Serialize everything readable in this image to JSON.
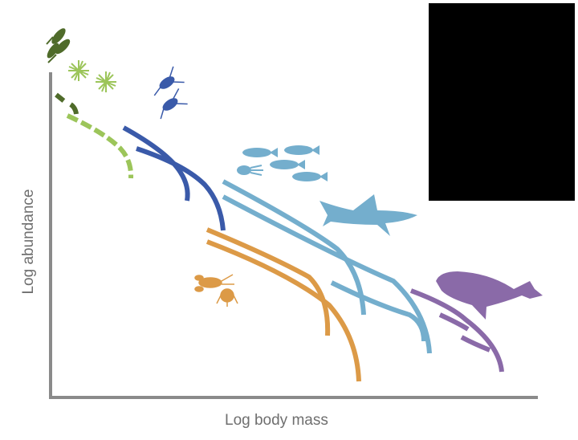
{
  "axes": {
    "x_label": "Log body mass",
    "y_label": "Log abundance"
  },
  "groups": [
    {
      "name": "phytoplankton",
      "color": "#9cc55a"
    },
    {
      "name": "zooplankton",
      "color": "#3a5aa9"
    },
    {
      "name": "benthic invertebrates",
      "color": "#dc9a47"
    },
    {
      "name": "fish",
      "color": "#74aecd"
    },
    {
      "name": "marine mammals",
      "color": "#8a6aa8"
    }
  ],
  "overlay": {
    "color": "#000000"
  },
  "axis_color": "#8a8a8a"
}
